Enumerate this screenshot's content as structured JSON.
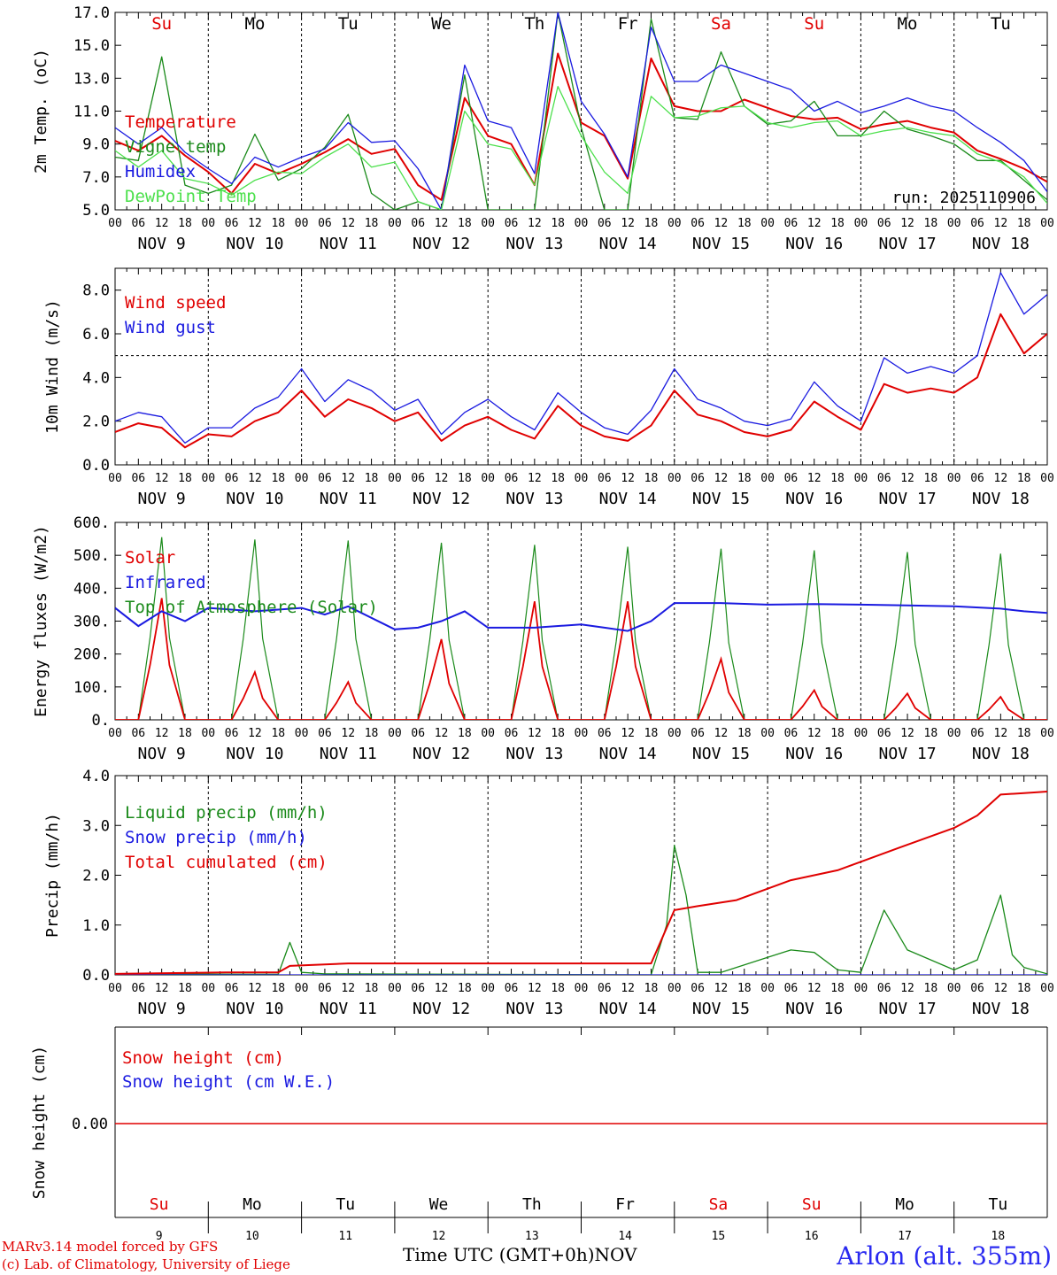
{
  "meteogram": {
    "days": [
      {
        "abbr": "Su",
        "date": "NOV  9",
        "num": "9",
        "weekend": true
      },
      {
        "abbr": "Mo",
        "date": "NOV 10",
        "num": "10",
        "weekend": false
      },
      {
        "abbr": "Tu",
        "date": "NOV 11",
        "num": "11",
        "weekend": false
      },
      {
        "abbr": "We",
        "date": "NOV 12",
        "num": "12",
        "weekend": false
      },
      {
        "abbr": "Th",
        "date": "NOV 13",
        "num": "13",
        "weekend": false
      },
      {
        "abbr": "Fr",
        "date": "NOV 14",
        "num": "14",
        "weekend": false
      },
      {
        "abbr": "Sa",
        "date": "NOV 15",
        "num": "15",
        "weekend": true
      },
      {
        "abbr": "Su",
        "date": "NOV 16",
        "num": "16",
        "weekend": true
      },
      {
        "abbr": "Mo",
        "date": "NOV 17",
        "num": "17",
        "weekend": false
      },
      {
        "abbr": "Tu",
        "date": "NOV 18",
        "num": "18",
        "weekend": false
      }
    ],
    "hour_labels": [
      "00",
      "06",
      "12",
      "18"
    ],
    "final_hour_label": "00",
    "run_label": "run: 2025110906",
    "x_axis_title": "Time UTC (GMT+0h)",
    "x_axis_month": "NOV",
    "credits": [
      "MARv3.14 model forced by GFS",
      "(c) Lab. of Climatology, University of Liege"
    ],
    "station": "Arlon (alt. 355m)",
    "colors": {
      "red": "#e00000",
      "green": "#1a8a1a",
      "blue": "#1a1ae0",
      "lightgreen": "#4ce04c",
      "weekend": "#e00000"
    }
  },
  "chart_data": [
    {
      "type": "line",
      "id": "temperature",
      "ylabel": "2m Temp. (oC)",
      "ylim": [
        5,
        17
      ],
      "yticks": [
        "5.0",
        "7.0",
        "9.0",
        "11.0",
        "13.0",
        "15.0",
        "17.0"
      ],
      "ytick_values": [
        5,
        7,
        9,
        11,
        13,
        15,
        17
      ],
      "x": [
        0,
        6,
        12,
        18,
        24,
        30,
        36,
        42,
        48,
        54,
        60,
        66,
        72,
        78,
        84,
        90,
        96,
        102,
        108,
        114,
        120,
        126,
        132,
        138,
        144,
        150,
        156,
        162,
        168,
        174,
        180,
        186,
        192,
        198,
        204,
        210,
        216,
        222,
        228,
        234,
        240
      ],
      "series": [
        {
          "name": "Temperature",
          "color": "red",
          "values": [
            9.2,
            8.6,
            9.5,
            8.3,
            7.3,
            6.0,
            7.8,
            7.2,
            7.8,
            8.5,
            9.3,
            8.4,
            8.7,
            6.5,
            5.6,
            11.8,
            9.5,
            9.0,
            6.5,
            14.5,
            10.3,
            9.5,
            6.9,
            14.2,
            11.3,
            11.0,
            11.0,
            11.7,
            11.2,
            10.7,
            10.5,
            10.6,
            9.9,
            10.2,
            10.4,
            10.0,
            9.7,
            8.6,
            8.1,
            7.5,
            6.7
          ]
        },
        {
          "name": "Vigne temp",
          "color": "green",
          "values": [
            8.2,
            8.0,
            14.3,
            6.5,
            6.0,
            6.5,
            9.6,
            6.8,
            7.5,
            8.8,
            10.8,
            6.0,
            5.0,
            5.5,
            5.0,
            13.2,
            5.0,
            5.0,
            5.0,
            17.0,
            10.0,
            5.0,
            5.0,
            16.6,
            10.6,
            10.5,
            14.6,
            11.3,
            10.2,
            10.4,
            11.6,
            9.5,
            9.5,
            11.0,
            9.9,
            9.5,
            9.0,
            8.0,
            8.0,
            6.8,
            5.6
          ]
        },
        {
          "name": "Humidex",
          "color": "blue",
          "values": [
            10.0,
            9.0,
            10.0,
            8.5,
            7.5,
            6.6,
            8.2,
            7.6,
            8.2,
            8.7,
            10.3,
            9.1,
            9.2,
            7.5,
            5.0,
            13.8,
            10.4,
            10.0,
            7.2,
            17.0,
            11.6,
            9.6,
            7.0,
            16.1,
            12.8,
            12.8,
            13.8,
            13.3,
            12.8,
            12.3,
            11.0,
            11.6,
            10.9,
            11.3,
            11.8,
            11.3,
            11.0,
            10.0,
            9.1,
            8.0,
            6.1
          ]
        },
        {
          "name": "DewPoint Temp",
          "color": "lightgreen",
          "values": [
            8.6,
            7.6,
            8.6,
            6.9,
            6.6,
            5.9,
            6.8,
            7.3,
            7.2,
            8.2,
            9.0,
            7.6,
            7.9,
            5.5,
            5.0,
            11.0,
            9.0,
            8.7,
            6.5,
            12.5,
            9.5,
            7.3,
            6.0,
            11.9,
            10.6,
            10.7,
            11.2,
            11.3,
            10.3,
            10.0,
            10.3,
            10.4,
            9.5,
            9.8,
            10.0,
            9.7,
            9.5,
            8.4,
            7.9,
            7.0,
            5.4
          ]
        }
      ]
    },
    {
      "type": "line",
      "id": "wind",
      "ylabel": "10m Wind (m/s)",
      "ylim": [
        0,
        9
      ],
      "yticks": [
        "0.0",
        "2.0",
        "4.0",
        "6.0",
        "8.0"
      ],
      "ytick_values": [
        0,
        2,
        4,
        6,
        8
      ],
      "reference_line": 5,
      "x": [
        0,
        6,
        12,
        18,
        24,
        30,
        36,
        42,
        48,
        54,
        60,
        66,
        72,
        78,
        84,
        90,
        96,
        102,
        108,
        114,
        120,
        126,
        132,
        138,
        144,
        150,
        156,
        162,
        168,
        174,
        180,
        186,
        192,
        198,
        204,
        210,
        216,
        222,
        228,
        234,
        240
      ],
      "series": [
        {
          "name": "Wind speed",
          "color": "red",
          "values": [
            1.5,
            1.9,
            1.7,
            0.8,
            1.4,
            1.3,
            2.0,
            2.4,
            3.4,
            2.2,
            3.0,
            2.6,
            2.0,
            2.4,
            1.1,
            1.8,
            2.2,
            1.6,
            1.2,
            2.7,
            1.8,
            1.3,
            1.1,
            1.8,
            3.4,
            2.3,
            2.0,
            1.5,
            1.3,
            1.6,
            2.9,
            2.2,
            1.6,
            3.7,
            3.3,
            3.5,
            3.3,
            4.0,
            6.9,
            5.1,
            6.0
          ]
        },
        {
          "name": "Wind gust",
          "color": "blue",
          "values": [
            2.0,
            2.4,
            2.2,
            1.0,
            1.7,
            1.7,
            2.6,
            3.1,
            4.4,
            2.9,
            3.9,
            3.4,
            2.5,
            3.0,
            1.4,
            2.4,
            3.0,
            2.2,
            1.6,
            3.3,
            2.4,
            1.7,
            1.4,
            2.5,
            4.4,
            3.0,
            2.6,
            2.0,
            1.8,
            2.1,
            3.8,
            2.7,
            2.0,
            4.9,
            4.2,
            4.5,
            4.2,
            5.0,
            8.8,
            6.9,
            7.8
          ]
        }
      ]
    },
    {
      "type": "line",
      "id": "energy",
      "ylabel": "Energy fluxes (W/m2)",
      "ylim": [
        0,
        600
      ],
      "yticks": [
        "0.",
        "100.",
        "200.",
        "300.",
        "400.",
        "500.",
        "600."
      ],
      "ytick_values": [
        0,
        100,
        200,
        300,
        400,
        500,
        600
      ],
      "x_day_offsets": [
        0,
        6,
        9,
        12,
        14,
        18,
        24
      ],
      "series": [
        {
          "name": "Solar",
          "color": "red",
          "day_peaks": [
            370,
            145,
            115,
            245,
            360,
            360,
            185,
            90,
            80,
            70
          ]
        },
        {
          "name": "Infrared",
          "color": "blue",
          "x": [
            0,
            6,
            12,
            18,
            24,
            36,
            48,
            54,
            60,
            72,
            78,
            84,
            90,
            96,
            108,
            120,
            126,
            132,
            138,
            144,
            156,
            168,
            180,
            192,
            204,
            216,
            228,
            234,
            240
          ],
          "values": [
            340,
            285,
            330,
            300,
            340,
            330,
            340,
            320,
            345,
            275,
            280,
            300,
            330,
            280,
            280,
            290,
            280,
            270,
            300,
            355,
            355,
            350,
            352,
            350,
            348,
            345,
            338,
            330,
            325
          ]
        },
        {
          "name": "Top of Atmosphere (Solar)",
          "color": "green",
          "day_peaks": [
            555,
            548,
            545,
            538,
            532,
            526,
            520,
            515,
            510,
            505
          ]
        }
      ]
    },
    {
      "type": "line",
      "id": "precip",
      "ylabel": "Precip (mm/h)",
      "ylim": [
        0,
        4
      ],
      "yticks": [
        "0.0",
        "1.0",
        "2.0",
        "3.0",
        "4.0"
      ],
      "ytick_values": [
        0,
        1,
        2,
        3,
        4
      ],
      "series": [
        {
          "name": "Liquid precip (mm/h)",
          "color": "green",
          "x": [
            0,
            42,
            45,
            48,
            54,
            138,
            142,
            144,
            147,
            150,
            156,
            162,
            168,
            174,
            180,
            186,
            192,
            198,
            204,
            210,
            216,
            222,
            228,
            231,
            234,
            240
          ],
          "values": [
            0.02,
            0.01,
            0.65,
            0.05,
            0.02,
            0.0,
            1.0,
            2.6,
            1.6,
            0.05,
            0.05,
            0.2,
            0.35,
            0.5,
            0.45,
            0.1,
            0.05,
            1.3,
            0.5,
            0.3,
            0.1,
            0.3,
            1.6,
            0.4,
            0.15,
            0.02
          ]
        },
        {
          "name": "Snow precip (mm/h)",
          "color": "blue",
          "x": [
            0,
            240
          ],
          "values": [
            0,
            0
          ]
        },
        {
          "name": "Total cumulated (cm)",
          "color": "red",
          "x": [
            0,
            30,
            42,
            45,
            60,
            138,
            144,
            150,
            160,
            174,
            186,
            200,
            216,
            222,
            228,
            234,
            240
          ],
          "values": [
            0.02,
            0.05,
            0.05,
            0.18,
            0.23,
            0.23,
            1.3,
            1.38,
            1.5,
            1.9,
            2.1,
            2.5,
            2.95,
            3.2,
            3.62,
            3.65,
            3.68
          ]
        }
      ]
    },
    {
      "type": "line",
      "id": "snow",
      "ylabel": "Snow height (cm)",
      "yticks": [
        "0.00"
      ],
      "ytick_values": [
        0
      ],
      "series": [
        {
          "name": "Snow height (cm)",
          "color": "red",
          "x": [
            0,
            240
          ],
          "values": [
            0,
            0
          ]
        },
        {
          "name": "Snow height (cm W.E.)",
          "color": "blue",
          "x": [
            0,
            240
          ],
          "values": [
            0,
            0
          ]
        }
      ]
    }
  ]
}
